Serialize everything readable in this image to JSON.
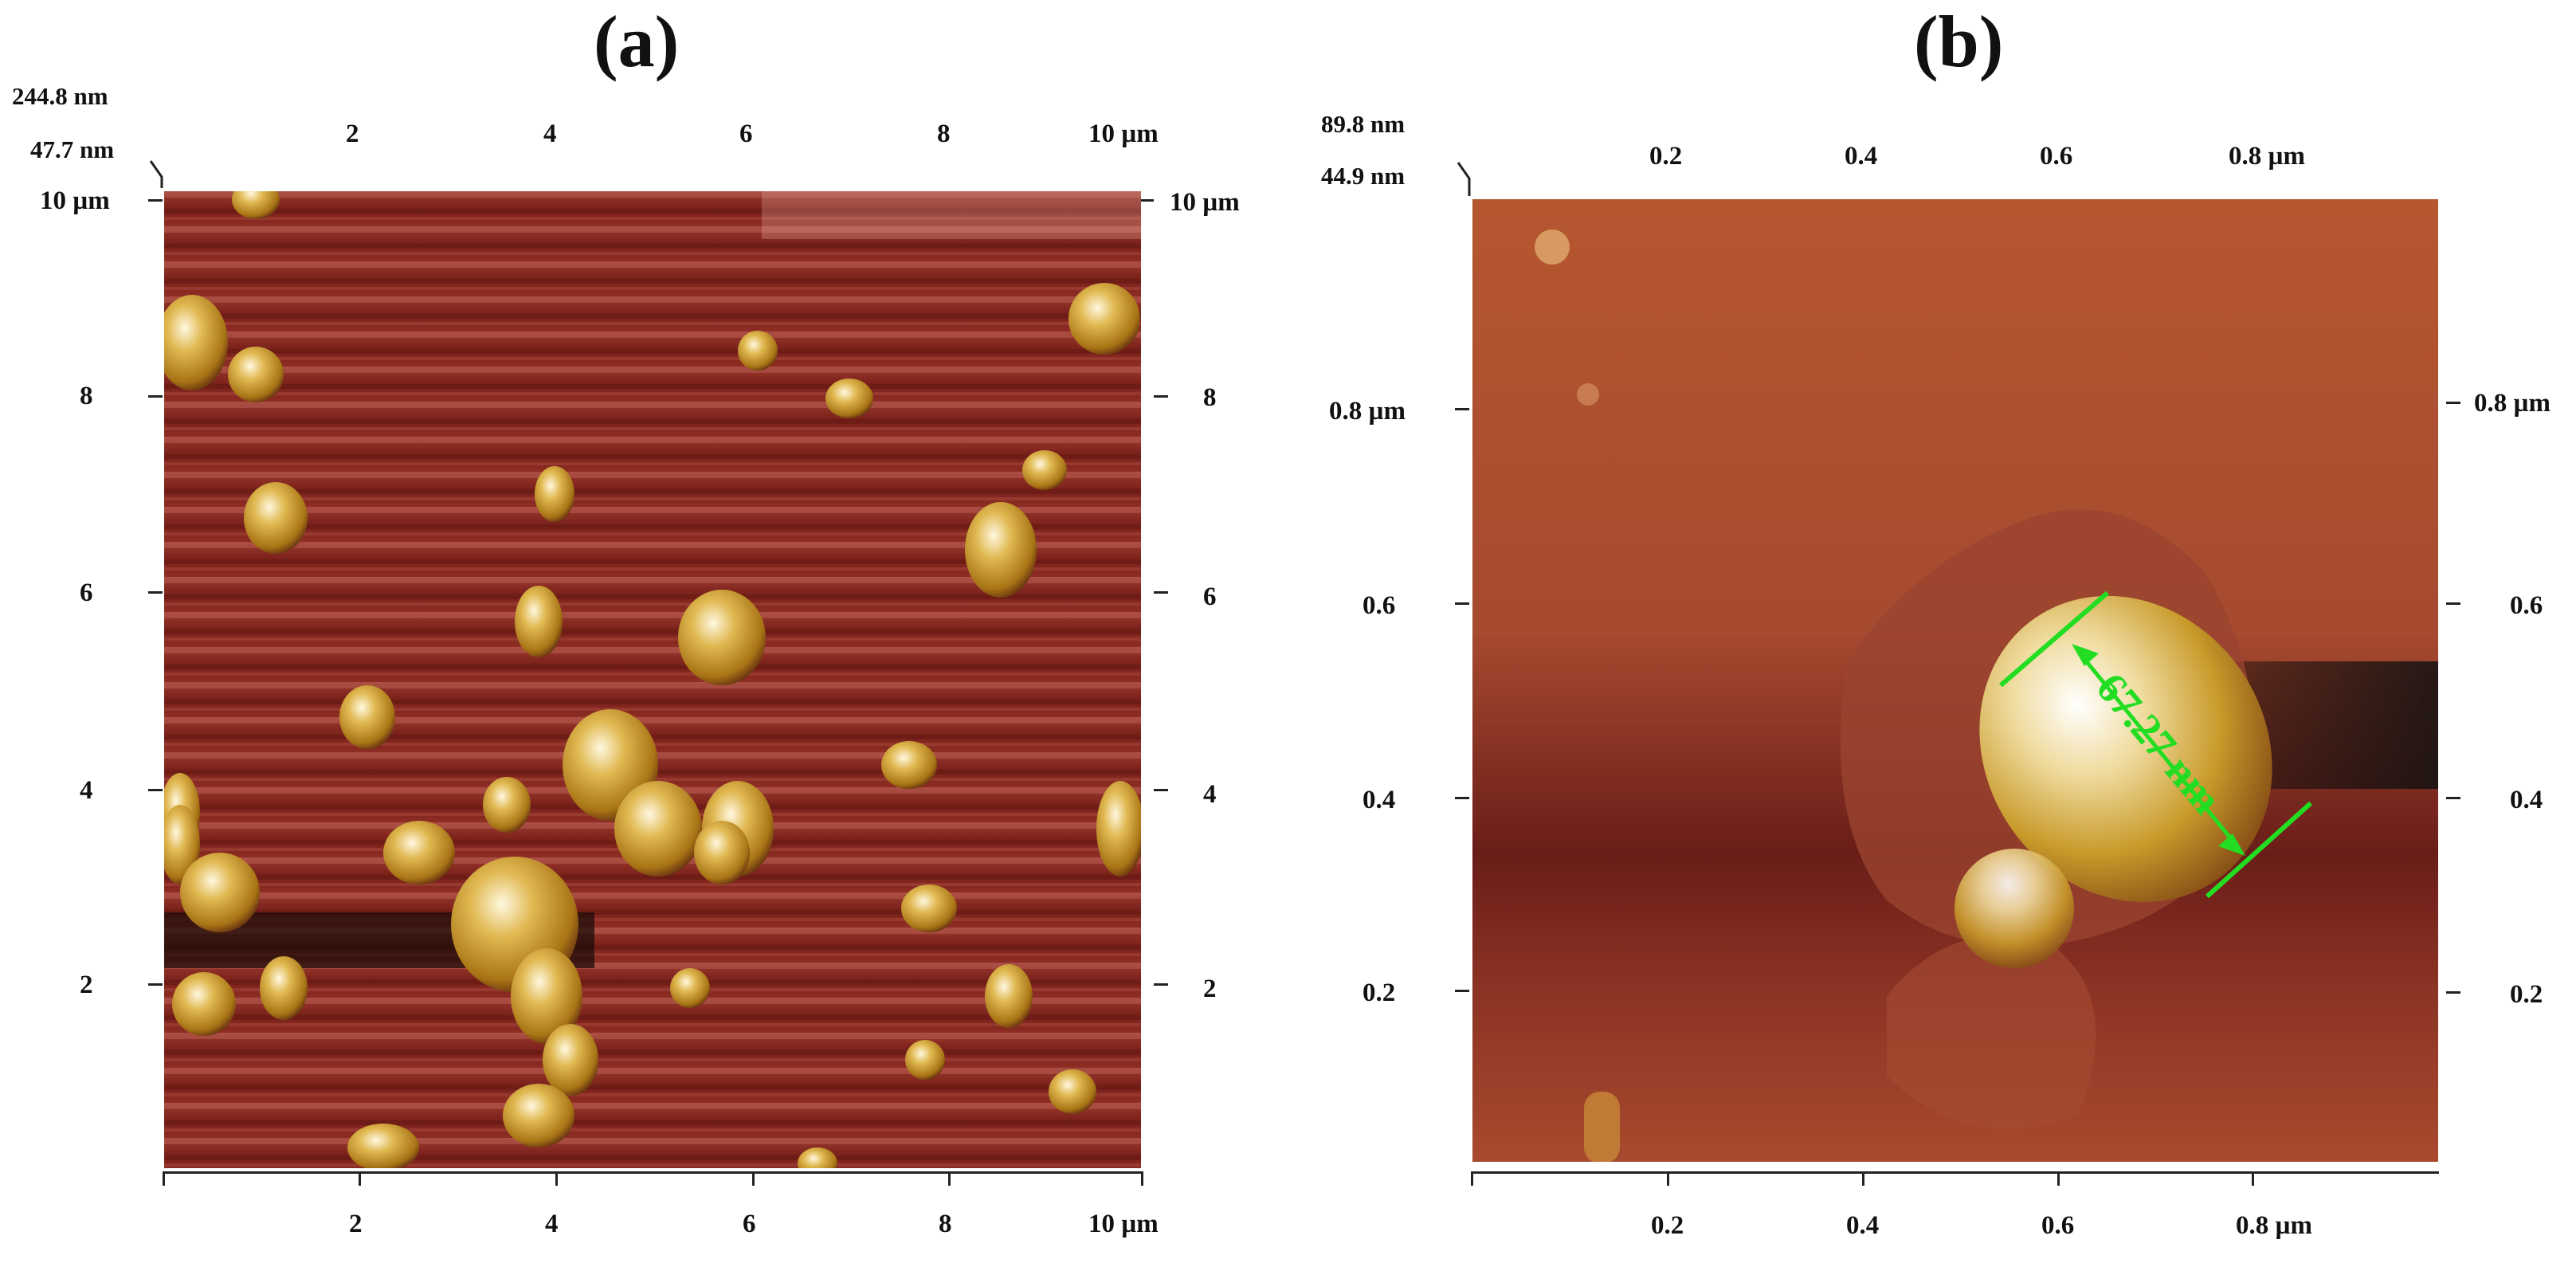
{
  "panel_a": {
    "label": "(a)",
    "z_max": "244.8 nm",
    "z_min": "47.7 nm",
    "top_ticks": [
      "2",
      "4",
      "6",
      "8",
      "10 µm"
    ],
    "bottom_ticks": [
      "2",
      "4",
      "6",
      "8",
      "10 µm"
    ],
    "left_ticks": [
      "10 µm",
      "8",
      "6",
      "4",
      "2"
    ],
    "right_ticks": [
      "10 µm",
      "8",
      "6",
      "4",
      "2"
    ]
  },
  "panel_b": {
    "label": "(b)",
    "z_max": "89.8 nm",
    "z_min": "44.9 nm",
    "top_ticks": [
      "0.2",
      "0.4",
      "0.6",
      "0.8 µm"
    ],
    "bottom_ticks": [
      "0.2",
      "0.4",
      "0.6",
      "0.8 µm"
    ],
    "left_ticks": [
      "0.8 µm",
      "0.6",
      "0.4",
      "0.2"
    ],
    "right_ticks": [
      "0.8 µm",
      "0.6",
      "0.4",
      "0.2"
    ],
    "measurement": "67.27 nm",
    "measurement_color": "#22dd22"
  },
  "colors": {
    "substrate_a": "#8a2a22",
    "substrate_b": "#b4532f",
    "particle": "#c89a2a",
    "highlight": "#fff6d8"
  }
}
